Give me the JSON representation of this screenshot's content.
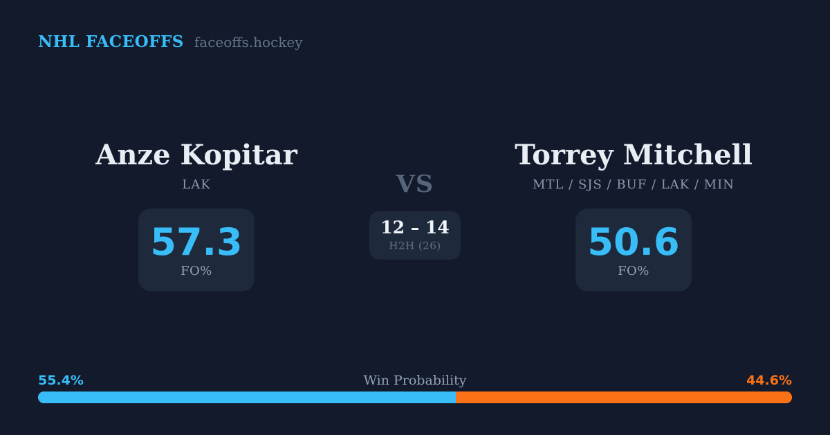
{
  "header": {
    "brand": "NHL FACEOFFS",
    "site": "faceoffs.hockey"
  },
  "players": {
    "left": {
      "name": "Anze Kopitar",
      "teams": "LAK",
      "stat_value": "57.3",
      "stat_label": "FO%"
    },
    "right": {
      "name": "Torrey Mitchell",
      "teams": "MTL / SJS / BUF / LAK / MIN",
      "stat_value": "50.6",
      "stat_label": "FO%"
    }
  },
  "center": {
    "vs_label": "VS",
    "h2h_score": "12 – 14",
    "h2h_label": "H2H (26)"
  },
  "win_probability": {
    "title": "Win Probability",
    "left_label": "55.4%",
    "right_label": "44.6%",
    "left_pct": 55.4,
    "right_pct": 44.6
  },
  "colors": {
    "background": "#121a2b",
    "panel": "#1e293b",
    "accent_blue": "#38bdf8",
    "accent_orange": "#f97316",
    "text_primary": "#e9eef5",
    "text_muted": "#8d9aae",
    "text_dim": "#64748b"
  }
}
